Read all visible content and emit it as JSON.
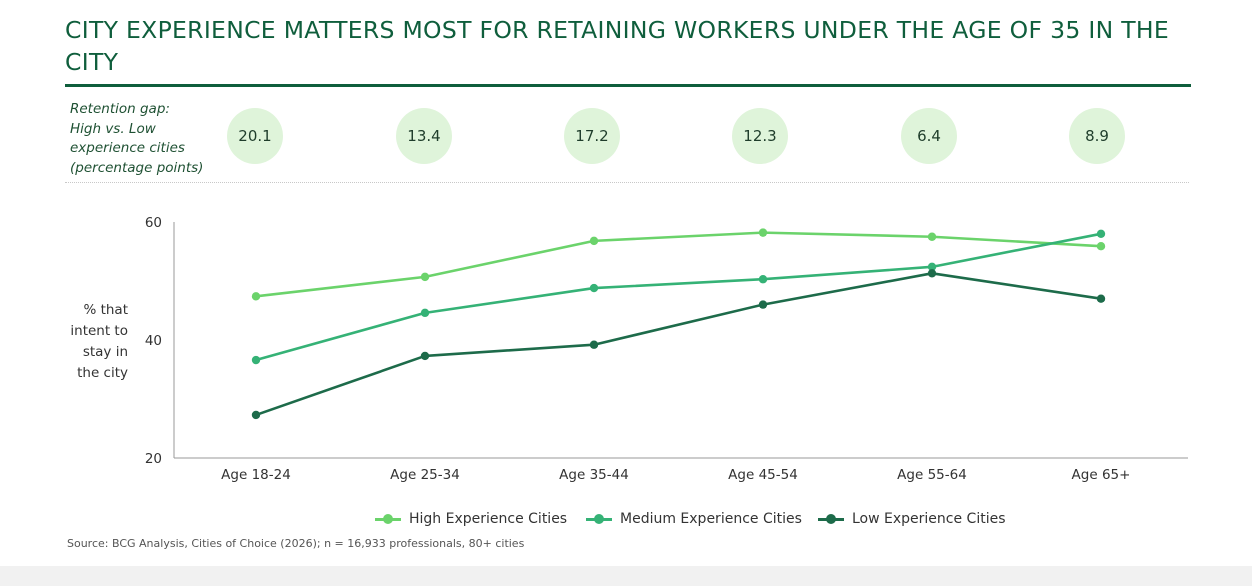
{
  "header": {
    "title": "CITY EXPERIENCE MATTERS MOST FOR RETAINING WORKERS UNDER THE AGE OF 35 IN THE CITY",
    "gap_label": "Retention gap:\nHigh vs. Low\nexperience cities\n(percentage points)",
    "gaps": [
      "20.1",
      "13.4",
      "17.2",
      "12.3",
      "6.4",
      "8.9"
    ]
  },
  "colors": {
    "title": "#0f5e3c",
    "bubble": "#dff4da",
    "high": "#6bd36b",
    "medium": "#35b276",
    "low": "#1d6b4a"
  },
  "source": "Source: BCG Analysis, Cities of Choice (2026); n = 16,933 professionals, 80+ cities",
  "chart_data": {
    "type": "line",
    "title": "",
    "xlabel": "",
    "ylabel": "% that\nintent to\nstay in\nthe city",
    "categories": [
      "Age 18-24",
      "Age 25-34",
      "Age 35-44",
      "Age 45-54",
      "Age 55-64",
      "Age 65+"
    ],
    "ylim": [
      20,
      60
    ],
    "yticks": [
      20,
      40,
      60
    ],
    "grid": false,
    "legend_position": "bottom",
    "series": [
      {
        "name": "High Experience Cities",
        "color": "#6bd36b",
        "values": [
          47.4,
          50.7,
          56.8,
          58.2,
          57.5,
          55.9
        ]
      },
      {
        "name": "Medium Experience Cities",
        "color": "#35b276",
        "values": [
          36.6,
          44.6,
          48.8,
          50.3,
          52.4,
          58.0
        ]
      },
      {
        "name": "Low Experience Cities",
        "color": "#1d6b4a",
        "values": [
          27.3,
          37.3,
          39.2,
          46.0,
          51.3,
          47.0
        ]
      }
    ]
  }
}
